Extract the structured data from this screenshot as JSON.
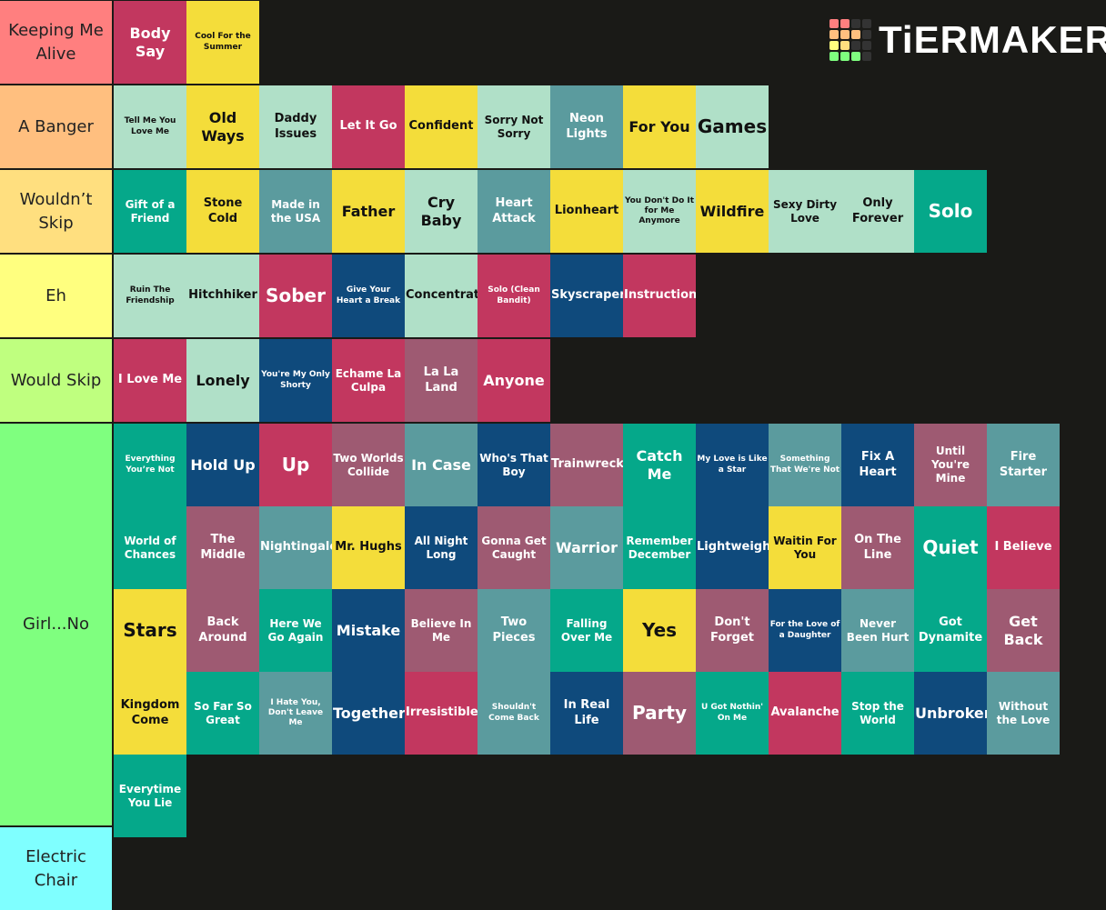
{
  "logo": "TiERMAKER",
  "tiers": [
    {
      "label": "Keeping Me Alive",
      "color": "#ff7f7f",
      "items": [
        {
          "text": "Body Say",
          "color": "#c2375f"
        },
        {
          "text": "Cool For the Summer",
          "color": "#f4dd3a"
        }
      ]
    },
    {
      "label": "A Banger",
      "color": "#ffbf7f",
      "items": [
        {
          "text": "Tell Me You Love Me",
          "color": "#b0e0c8"
        },
        {
          "text": "Old Ways",
          "color": "#f4dd3a"
        },
        {
          "text": "Daddy Issues",
          "color": "#b0e0c8"
        },
        {
          "text": "Let It Go",
          "color": "#c2375f"
        },
        {
          "text": "Confident",
          "color": "#f4dd3a"
        },
        {
          "text": "Sorry Not Sorry",
          "color": "#b0e0c8"
        },
        {
          "text": "Neon Lights",
          "color": "#5b9b9e"
        },
        {
          "text": "For You",
          "color": "#f4dd3a"
        },
        {
          "text": "Games",
          "color": "#b0e0c8"
        }
      ]
    },
    {
      "label": "Wouldn’t Skip",
      "color": "#ffdf7f",
      "items": [
        {
          "text": "Gift of a Friend",
          "color": "#05a88a"
        },
        {
          "text": "Stone Cold",
          "color": "#f4dd3a"
        },
        {
          "text": "Made in the USA",
          "color": "#5b9b9e"
        },
        {
          "text": "Father",
          "color": "#f4dd3a"
        },
        {
          "text": "Cry Baby",
          "color": "#b0e0c8"
        },
        {
          "text": "Heart Attack",
          "color": "#5b9b9e"
        },
        {
          "text": "Lionheart",
          "color": "#f4dd3a"
        },
        {
          "text": "You Don't Do It for Me Anymore",
          "color": "#b0e0c8"
        },
        {
          "text": "Wildfire",
          "color": "#f4dd3a"
        },
        {
          "text": "Sexy Dirty Love",
          "color": "#b0e0c8"
        },
        {
          "text": "Only Forever",
          "color": "#b0e0c8"
        },
        {
          "text": "Solo",
          "color": "#05a88a"
        }
      ]
    },
    {
      "label": "Eh",
      "color": "#ffff7f",
      "items": [
        {
          "text": "Ruin The Friendship",
          "color": "#b0e0c8"
        },
        {
          "text": "Hitchhiker",
          "color": "#b0e0c8"
        },
        {
          "text": "Sober",
          "color": "#c2375f"
        },
        {
          "text": "Give Your Heart a Break",
          "color": "#0f4a7c"
        },
        {
          "text": "Concentrate",
          "color": "#b0e0c8"
        },
        {
          "text": "Solo (Clean Bandit)",
          "color": "#c2375f"
        },
        {
          "text": "Skyscraper",
          "color": "#0f4a7c"
        },
        {
          "text": "Instruction",
          "color": "#c2375f"
        }
      ]
    },
    {
      "label": "Would Skip",
      "color": "#bfff7f",
      "items": [
        {
          "text": "I Love Me",
          "color": "#c2375f"
        },
        {
          "text": "Lonely",
          "color": "#b0e0c8"
        },
        {
          "text": "You're My Only Shorty",
          "color": "#0f4a7c"
        },
        {
          "text": "Echame La Culpa",
          "color": "#c2375f"
        },
        {
          "text": "La La Land",
          "color": "#9e5a72"
        },
        {
          "text": "Anyone",
          "color": "#c2375f"
        }
      ]
    },
    {
      "label": "Girl...No",
      "color": "#7fff7f",
      "items": [
        {
          "text": "Everything You’re Not",
          "color": "#05a88a"
        },
        {
          "text": "Hold Up",
          "color": "#0f4a7c"
        },
        {
          "text": "Up",
          "color": "#c2375f"
        },
        {
          "text": "Two Worlds Collide",
          "color": "#9e5a72"
        },
        {
          "text": "In Case",
          "color": "#5b9b9e"
        },
        {
          "text": "Who's That Boy",
          "color": "#0f4a7c"
        },
        {
          "text": "Trainwreck",
          "color": "#9e5a72"
        },
        {
          "text": "Catch Me",
          "color": "#05a88a"
        },
        {
          "text": "My Love is Like a Star",
          "color": "#0f4a7c"
        },
        {
          "text": "Something That We're Not",
          "color": "#5b9b9e"
        },
        {
          "text": "Fix A Heart",
          "color": "#0f4a7c"
        },
        {
          "text": "Until You're Mine",
          "color": "#9e5a72"
        },
        {
          "text": "Fire Starter",
          "color": "#5b9b9e"
        },
        {
          "text": "World of Chances",
          "color": "#05a88a"
        },
        {
          "text": "The Middle",
          "color": "#9e5a72"
        },
        {
          "text": "Nightingale",
          "color": "#5b9b9e"
        },
        {
          "text": "Mr. Hughs",
          "color": "#f4dd3a"
        },
        {
          "text": "All Night Long",
          "color": "#0f4a7c"
        },
        {
          "text": "Gonna Get Caught",
          "color": "#9e5a72"
        },
        {
          "text": "Warrior",
          "color": "#5b9b9e"
        },
        {
          "text": "Remember December",
          "color": "#05a88a"
        },
        {
          "text": "Lightweight",
          "color": "#0f4a7c"
        },
        {
          "text": "Waitin For You",
          "color": "#f4dd3a"
        },
        {
          "text": "On The Line",
          "color": "#9e5a72"
        },
        {
          "text": "Quiet",
          "color": "#05a88a"
        },
        {
          "text": "I Believe",
          "color": "#c2375f"
        },
        {
          "text": "Stars",
          "color": "#f4dd3a"
        },
        {
          "text": "Back Around",
          "color": "#9e5a72"
        },
        {
          "text": "Here We Go Again",
          "color": "#05a88a"
        },
        {
          "text": "Mistake",
          "color": "#0f4a7c"
        },
        {
          "text": "Believe In Me",
          "color": "#9e5a72"
        },
        {
          "text": "Two Pieces",
          "color": "#5b9b9e"
        },
        {
          "text": "Falling Over Me",
          "color": "#05a88a"
        },
        {
          "text": "Yes",
          "color": "#f4dd3a"
        },
        {
          "text": "Don't Forget",
          "color": "#9e5a72"
        },
        {
          "text": "For the Love of a Daughter",
          "color": "#0f4a7c"
        },
        {
          "text": "Never Been Hurt",
          "color": "#5b9b9e"
        },
        {
          "text": "Got Dynamite",
          "color": "#05a88a"
        },
        {
          "text": "Get Back",
          "color": "#9e5a72"
        },
        {
          "text": "Kingdom Come",
          "color": "#f4dd3a"
        },
        {
          "text": "So Far So Great",
          "color": "#05a88a"
        },
        {
          "text": "I Hate You, Don't Leave Me",
          "color": "#5b9b9e"
        },
        {
          "text": "Together",
          "color": "#0f4a7c"
        },
        {
          "text": "Irresistible",
          "color": "#c2375f"
        },
        {
          "text": "Shouldn't Come Back",
          "color": "#5b9b9e"
        },
        {
          "text": "In Real Life",
          "color": "#0f4a7c"
        },
        {
          "text": "Party",
          "color": "#9e5a72"
        },
        {
          "text": "U Got Nothin' On Me",
          "color": "#05a88a"
        },
        {
          "text": "Avalanche",
          "color": "#c2375f"
        },
        {
          "text": "Stop the World",
          "color": "#05a88a"
        },
        {
          "text": "Unbroken",
          "color": "#0f4a7c"
        },
        {
          "text": "Without the Love",
          "color": "#5b9b9e"
        },
        {
          "text": "Everytime You Lie",
          "color": "#05a88a"
        }
      ]
    },
    {
      "label": "Electric Chair",
      "color": "#7fffff",
      "items": []
    }
  ]
}
